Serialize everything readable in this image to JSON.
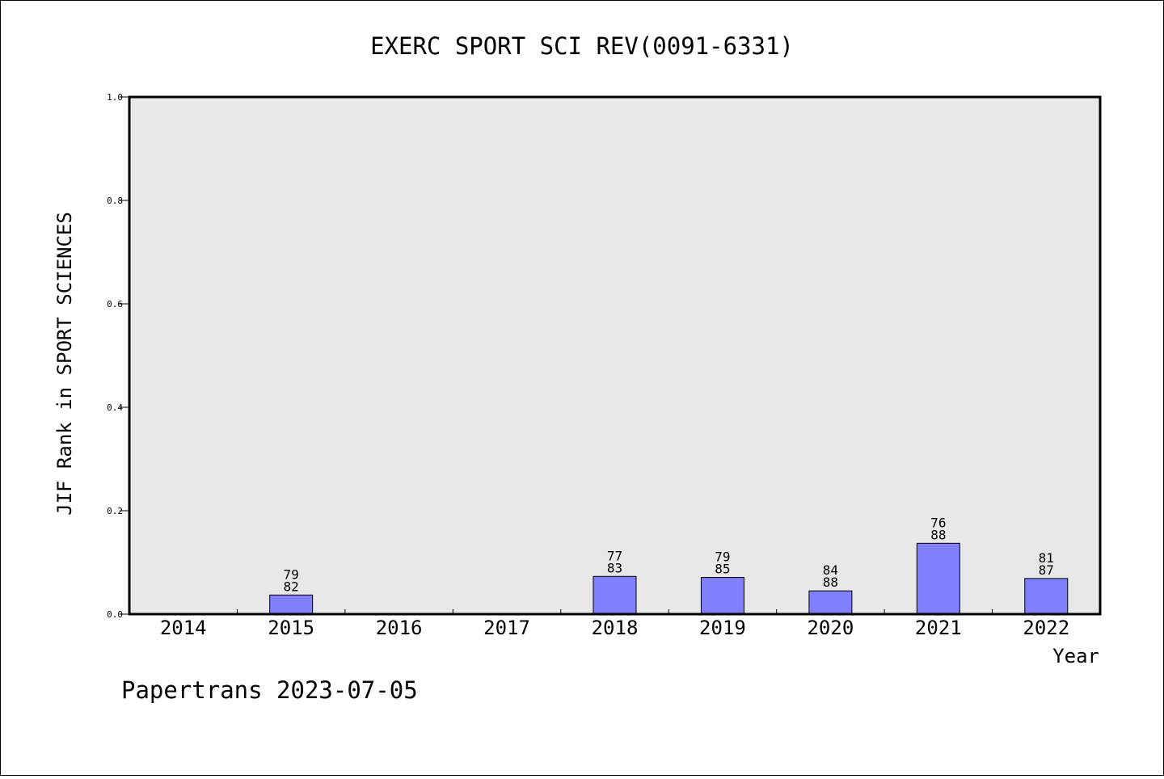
{
  "chart_data": {
    "type": "bar",
    "title": "EXERC SPORT SCI REV(0091-6331)",
    "xlabel": "Year",
    "ylabel": "JIF Rank in SPORT SCIENCES",
    "ylim": [
      0,
      1.0
    ],
    "yticks": [
      "0.0",
      "0.2",
      "0.4",
      "0.6",
      "0.8",
      "1.0"
    ],
    "categories": [
      "2014",
      "2015",
      "2016",
      "2017",
      "2018",
      "2019",
      "2020",
      "2021",
      "2022"
    ],
    "values": [
      null,
      0.037,
      null,
      null,
      0.073,
      0.071,
      0.045,
      0.137,
      0.069
    ],
    "annotations": [
      null,
      {
        "rank": "79",
        "total": "82"
      },
      null,
      null,
      {
        "rank": "77",
        "total": "83"
      },
      {
        "rank": "79",
        "total": "85"
      },
      {
        "rank": "84",
        "total": "88"
      },
      {
        "rank": "76",
        "total": "88"
      },
      {
        "rank": "81",
        "total": "87"
      }
    ],
    "grid": false,
    "legend": "none",
    "colors": {
      "plot_background": "#e8e8e8",
      "bar_fill": "#8080ff",
      "bar_stroke": "#000000",
      "frame": "#000000"
    }
  },
  "footer": {
    "watermark": "Papertrans 2023-07-05"
  }
}
